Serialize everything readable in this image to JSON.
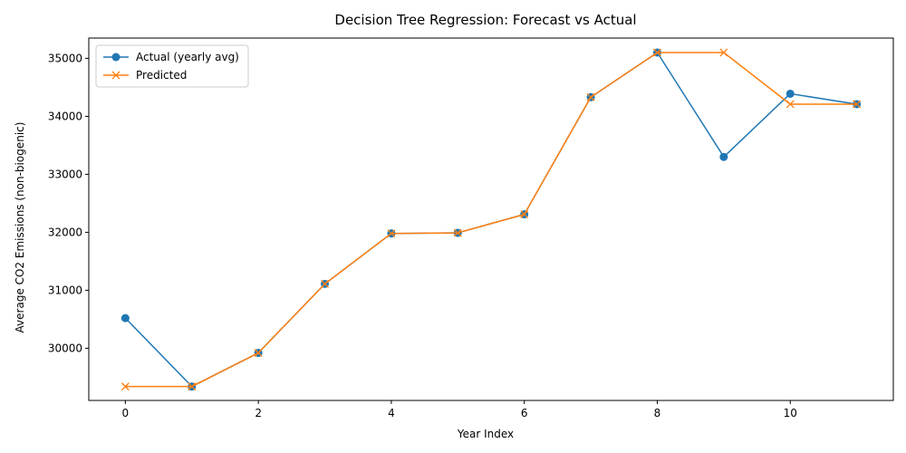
{
  "chart_data": {
    "type": "line",
    "title": "Decision Tree Regression: Forecast vs Actual",
    "xlabel": "Year Index",
    "ylabel": "Average CO2 Emissions (non-biogenic)",
    "xlim": [
      -0.55,
      11.55
    ],
    "ylim": [
      29100,
      35350
    ],
    "x_ticks": [
      0,
      2,
      4,
      6,
      8,
      10
    ],
    "y_ticks": [
      30000,
      31000,
      32000,
      33000,
      34000,
      35000
    ],
    "grid": false,
    "legend_position": "top-left",
    "x": [
      0,
      1,
      2,
      3,
      4,
      5,
      6,
      7,
      8,
      9,
      10,
      11
    ],
    "series": [
      {
        "name": "Actual (yearly avg)",
        "marker": "circle",
        "color": "#1f77b4",
        "values": [
          30520,
          29340,
          29920,
          31110,
          31980,
          31990,
          32310,
          34330,
          35100,
          33300,
          34390,
          34210
        ]
      },
      {
        "name": "Predicted",
        "marker": "x",
        "color": "#ff7f0e",
        "values": [
          29340,
          29340,
          29920,
          31110,
          31980,
          31990,
          32310,
          34330,
          35100,
          35100,
          34210,
          34210
        ]
      }
    ]
  }
}
